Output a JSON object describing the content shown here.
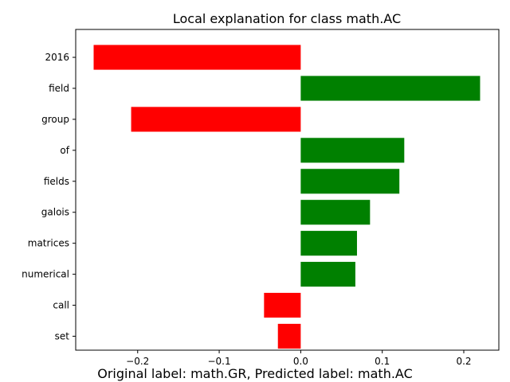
{
  "chart_data": {
    "type": "bar",
    "orientation": "horizontal",
    "title": "Local explanation for class math.AC",
    "categories": [
      "2016",
      "field",
      "group",
      "of",
      "fields",
      "galois",
      "matrices",
      "numerical",
      "call",
      "set"
    ],
    "values": [
      -0.254,
      0.22,
      -0.208,
      0.127,
      0.121,
      0.085,
      0.069,
      0.067,
      -0.045,
      -0.028
    ],
    "xlim": [
      -0.276,
      0.243
    ],
    "xticks": [
      -0.2,
      -0.1,
      0.0,
      0.1,
      0.2
    ],
    "xtick_labels": [
      "−0.2",
      "−0.1",
      "0.0",
      "0.1",
      "0.2"
    ],
    "positive_color": "#008000",
    "negative_color": "#ff0000",
    "grid": false,
    "legend": "none"
  },
  "caption": "Original label: math.GR, Predicted label: math.AC"
}
